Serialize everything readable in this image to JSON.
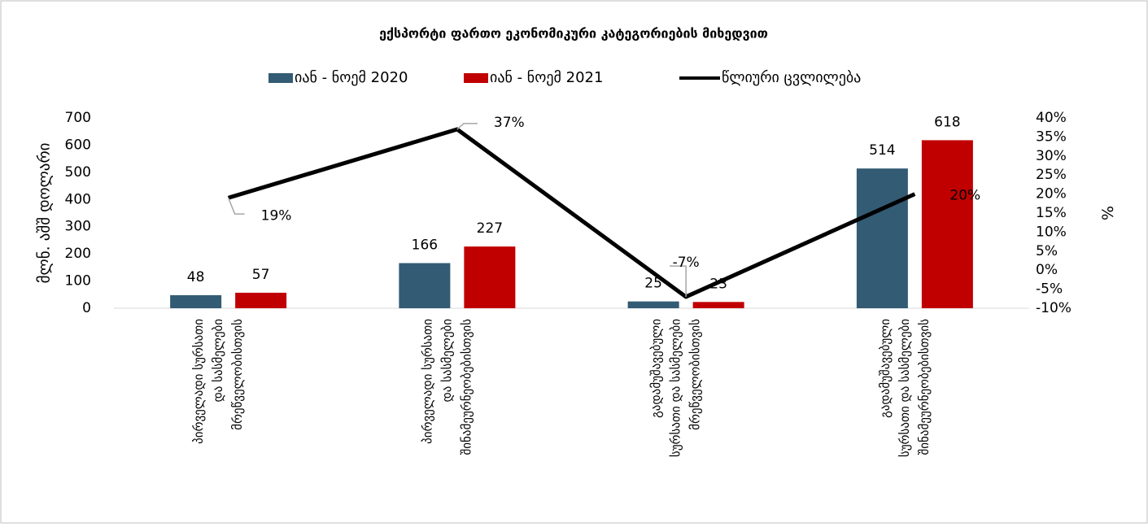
{
  "chart_data": {
    "type": "bar-line",
    "title": "ექსპორტი ფართო ეკონომიკური კატეგორიების მიხედვით",
    "y_label": "მლნ. აშშ დოლარი",
    "y2_label": "%",
    "categories": [
      [
        "პირველადი სურსათი",
        "და სასმელები",
        "მრეწველობისთვის"
      ],
      [
        "პირველადი სურსათი",
        "და სასმელები",
        "შინამეურნეობებისთვის"
      ],
      [
        "გადამუშავებული",
        "სურსათი და სასმელები",
        "მრეწველობისთვის"
      ],
      [
        "გადამუშავებული",
        "სურსათი და სასმელები",
        "შინამეურნეობებისთვის"
      ]
    ],
    "series": [
      {
        "name": "იან - ნოემ 2020",
        "type": "bar",
        "color": "#335b74",
        "values": [
          48,
          166,
          25,
          514
        ]
      },
      {
        "name": "იან - ნოემ 2021",
        "type": "bar",
        "color": "#c00000",
        "values": [
          57,
          227,
          23,
          618
        ]
      },
      {
        "name": "წლიური ცვლილება",
        "type": "line",
        "axis": "y2",
        "color": "#000000",
        "values": [
          19,
          37,
          -7,
          20
        ],
        "value_labels": [
          "19%",
          "37%",
          "-7%",
          "20%"
        ]
      }
    ],
    "ylim": [
      0,
      700
    ],
    "yticks": [
      0,
      100,
      200,
      300,
      400,
      500,
      600,
      700
    ],
    "y2lim": [
      -10,
      40
    ],
    "y2ticks": [
      {
        "value": -10,
        "label": "-10%"
      },
      {
        "value": -5,
        "label": "-5%"
      },
      {
        "value": 0,
        "label": "0%"
      },
      {
        "value": 5,
        "label": "5%"
      },
      {
        "value": 10,
        "label": "10%"
      },
      {
        "value": 15,
        "label": "15%"
      },
      {
        "value": 20,
        "label": "20%"
      },
      {
        "value": 25,
        "label": "25%"
      },
      {
        "value": 30,
        "label": "30%"
      },
      {
        "value": 35,
        "label": "35%"
      },
      {
        "value": 40,
        "label": "40%"
      }
    ],
    "grid": false
  }
}
